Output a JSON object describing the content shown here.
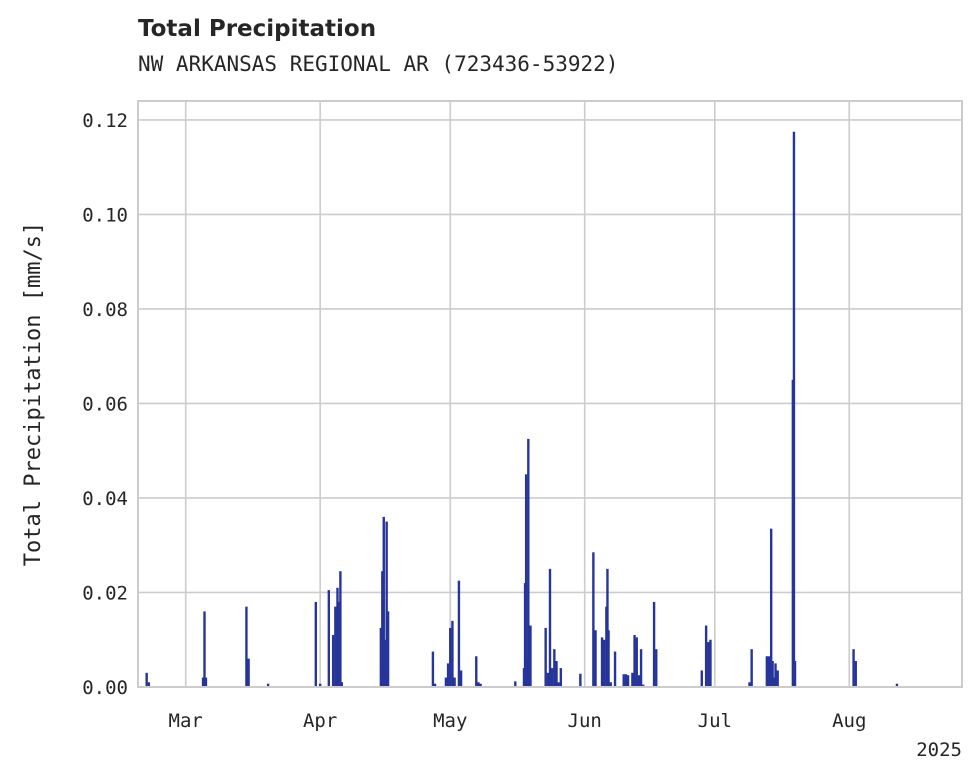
{
  "chart_data": {
    "type": "bar",
    "title": "Total Precipitation",
    "subtitle": "NW ARKANSAS REGIONAL AR (723436-53922)",
    "ylabel": "Total Precipitation [mm/s]",
    "xlabel": "",
    "offset_label": "2025",
    "ylim": [
      0,
      0.124
    ],
    "xlim": [
      "2025-02-18",
      "2025-08-27"
    ],
    "grid": true,
    "color": "#27359a",
    "y_ticks": [
      "0.00",
      "0.02",
      "0.04",
      "0.06",
      "0.08",
      "0.10",
      "0.12"
    ],
    "x_ticks": [
      {
        "date": "2025-03-01",
        "label": "Mar"
      },
      {
        "date": "2025-04-01",
        "label": "Apr"
      },
      {
        "date": "2025-05-01",
        "label": "May"
      },
      {
        "date": "2025-06-01",
        "label": "Jun"
      },
      {
        "date": "2025-07-01",
        "label": "Jul"
      },
      {
        "date": "2025-08-01",
        "label": "Aug"
      }
    ],
    "series": [
      {
        "points": [
          {
            "x": "2025-02-20",
            "y": 0.003
          },
          {
            "x": "2025-02-20T12",
            "y": 0.001
          },
          {
            "x": "2025-03-05",
            "y": 0.002
          },
          {
            "x": "2025-03-05T08",
            "y": 0.016
          },
          {
            "x": "2025-03-05T16",
            "y": 0.002
          },
          {
            "x": "2025-03-15",
            "y": 0.017
          },
          {
            "x": "2025-03-15T12",
            "y": 0.006
          },
          {
            "x": "2025-03-20",
            "y": 0.0007
          },
          {
            "x": "2025-03-31",
            "y": 0.018
          },
          {
            "x": "2025-04-01",
            "y": 0.0007
          },
          {
            "x": "2025-04-03",
            "y": 0.0205
          },
          {
            "x": "2025-04-04",
            "y": 0.011
          },
          {
            "x": "2025-04-04T12",
            "y": 0.017
          },
          {
            "x": "2025-04-05",
            "y": 0.021
          },
          {
            "x": "2025-04-05T08",
            "y": 0.018
          },
          {
            "x": "2025-04-05T16",
            "y": 0.0245
          },
          {
            "x": "2025-04-06",
            "y": 0.001
          },
          {
            "x": "2025-04-15",
            "y": 0.0125
          },
          {
            "x": "2025-04-15T08",
            "y": 0.0245
          },
          {
            "x": "2025-04-15T16",
            "y": 0.036
          },
          {
            "x": "2025-04-16",
            "y": 0.01
          },
          {
            "x": "2025-04-16T08",
            "y": 0.035
          },
          {
            "x": "2025-04-16T16",
            "y": 0.016
          },
          {
            "x": "2025-04-27",
            "y": 0.0075
          },
          {
            "x": "2025-04-27T12",
            "y": 0.0007
          },
          {
            "x": "2025-04-30",
            "y": 0.002
          },
          {
            "x": "2025-04-30T12",
            "y": 0.005
          },
          {
            "x": "2025-05-01",
            "y": 0.0125
          },
          {
            "x": "2025-05-01T12",
            "y": 0.014
          },
          {
            "x": "2025-05-02",
            "y": 0.002
          },
          {
            "x": "2025-05-03",
            "y": 0.0225
          },
          {
            "x": "2025-05-03T12",
            "y": 0.0035
          },
          {
            "x": "2025-05-07",
            "y": 0.0065
          },
          {
            "x": "2025-05-07T12",
            "y": 0.001
          },
          {
            "x": "2025-05-08",
            "y": 0.0007
          },
          {
            "x": "2025-05-16",
            "y": 0.0012
          },
          {
            "x": "2025-05-18",
            "y": 0.004
          },
          {
            "x": "2025-05-18T06",
            "y": 0.022
          },
          {
            "x": "2025-05-18T12",
            "y": 0.045
          },
          {
            "x": "2025-05-18T18",
            "y": 0.006
          },
          {
            "x": "2025-05-19",
            "y": 0.0525
          },
          {
            "x": "2025-05-19T12",
            "y": 0.013
          },
          {
            "x": "2025-05-23",
            "y": 0.0125
          },
          {
            "x": "2025-05-23T12",
            "y": 0.003
          },
          {
            "x": "2025-05-24",
            "y": 0.025
          },
          {
            "x": "2025-05-24T12",
            "y": 0.004
          },
          {
            "x": "2025-05-25",
            "y": 0.008
          },
          {
            "x": "2025-05-25T12",
            "y": 0.0055
          },
          {
            "x": "2025-05-26",
            "y": 0.001
          },
          {
            "x": "2025-05-26T12",
            "y": 0.004
          },
          {
            "x": "2025-05-31",
            "y": 0.0028
          },
          {
            "x": "2025-06-03",
            "y": 0.0285
          },
          {
            "x": "2025-06-03T12",
            "y": 0.012
          },
          {
            "x": "2025-06-05",
            "y": 0.0105
          },
          {
            "x": "2025-06-05T12",
            "y": 0.01
          },
          {
            "x": "2025-06-06",
            "y": 0.017
          },
          {
            "x": "2025-06-06T06",
            "y": 0.025
          },
          {
            "x": "2025-06-06T12",
            "y": 0.012
          },
          {
            "x": "2025-06-07",
            "y": 0.001
          },
          {
            "x": "2025-06-08",
            "y": 0.0075
          },
          {
            "x": "2025-06-10",
            "y": 0.0027
          },
          {
            "x": "2025-06-10T12",
            "y": 0.0027
          },
          {
            "x": "2025-06-11",
            "y": 0.0025
          },
          {
            "x": "2025-06-12",
            "y": 0.003
          },
          {
            "x": "2025-06-12T12",
            "y": 0.011
          },
          {
            "x": "2025-06-13",
            "y": 0.0105
          },
          {
            "x": "2025-06-13T12",
            "y": 0.0025
          },
          {
            "x": "2025-06-14",
            "y": 0.008
          },
          {
            "x": "2025-06-14T12",
            "y": 0.0005
          },
          {
            "x": "2025-06-17",
            "y": 0.018
          },
          {
            "x": "2025-06-17T12",
            "y": 0.008
          },
          {
            "x": "2025-06-28",
            "y": 0.0035
          },
          {
            "x": "2025-06-29",
            "y": 0.013
          },
          {
            "x": "2025-06-29T12",
            "y": 0.0095
          },
          {
            "x": "2025-06-30",
            "y": 0.01
          },
          {
            "x": "2025-07-09",
            "y": 0.001
          },
          {
            "x": "2025-07-09T12",
            "y": 0.008
          },
          {
            "x": "2025-07-13",
            "y": 0.0065
          },
          {
            "x": "2025-07-13T12",
            "y": 0.0065
          },
          {
            "x": "2025-07-14",
            "y": 0.0335
          },
          {
            "x": "2025-07-14T08",
            "y": 0.0055
          },
          {
            "x": "2025-07-14T16",
            "y": 0.002
          },
          {
            "x": "2025-07-15",
            "y": 0.005
          },
          {
            "x": "2025-07-15T12",
            "y": 0.0035
          },
          {
            "x": "2025-07-19",
            "y": 0.065
          },
          {
            "x": "2025-07-19T06",
            "y": 0.1175
          },
          {
            "x": "2025-07-19T12",
            "y": 0.0055
          },
          {
            "x": "2025-08-02",
            "y": 0.008
          },
          {
            "x": "2025-08-02T12",
            "y": 0.0055
          },
          {
            "x": "2025-08-12",
            "y": 0.0007
          }
        ]
      }
    ]
  }
}
